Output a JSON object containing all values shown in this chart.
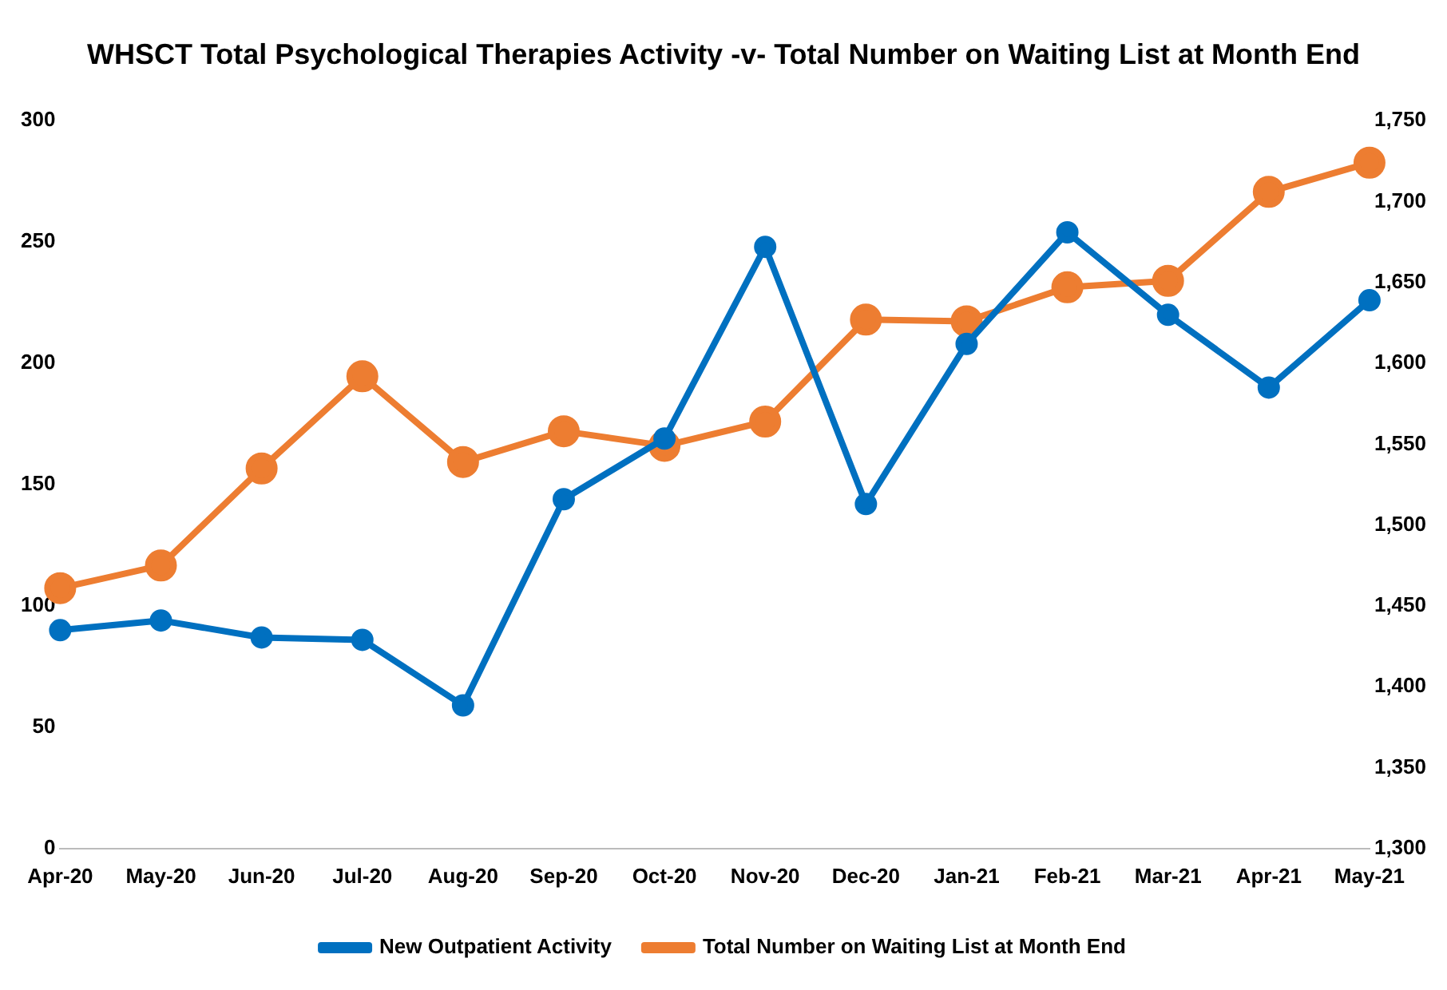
{
  "chart_data": {
    "type": "line",
    "title": "WHSCT Total Psychological Therapies Activity -v- Total Number on Waiting List at Month End",
    "categories": [
      "Apr-20",
      "May-20",
      "Jun-20",
      "Jul-20",
      "Aug-20",
      "Sep-20",
      "Oct-20",
      "Nov-20",
      "Dec-20",
      "Jan-21",
      "Feb-21",
      "Mar-21",
      "Apr-21",
      "May-21"
    ],
    "series": [
      {
        "name": "New Outpatient Activity",
        "color": "#0070c0",
        "values": [
          90,
          94,
          87,
          86,
          59,
          144,
          169,
          248,
          142,
          208,
          254,
          220,
          190,
          226
        ]
      },
      {
        "name": "Total Number on Waiting List at Month End",
        "color": "#ed7d31",
        "axis": "y2",
        "values": [
          1461,
          1475,
          1535,
          1592,
          1539,
          1558,
          1549,
          1564,
          1627,
          1626,
          1647,
          1651,
          1706,
          1724
        ]
      }
    ],
    "ylim": [
      0,
      300
    ],
    "yticks": [
      0,
      50,
      100,
      150,
      200,
      250,
      300
    ],
    "y2lim": [
      1300,
      1750
    ],
    "y2ticks": [
      {
        "value": 1300,
        "label": "1,300"
      },
      {
        "value": 1350,
        "label": "1,350"
      },
      {
        "value": 1400,
        "label": "1,400"
      },
      {
        "value": 1450,
        "label": "1,450"
      },
      {
        "value": 1500,
        "label": "1,500"
      },
      {
        "value": 1550,
        "label": "1,550"
      },
      {
        "value": 1600,
        "label": "1,600"
      },
      {
        "value": 1650,
        "label": "1,650"
      },
      {
        "value": 1700,
        "label": "1,700"
      },
      {
        "value": 1750,
        "label": "1,750"
      }
    ],
    "legend": "bottom",
    "marker": "circle",
    "grid": false
  }
}
